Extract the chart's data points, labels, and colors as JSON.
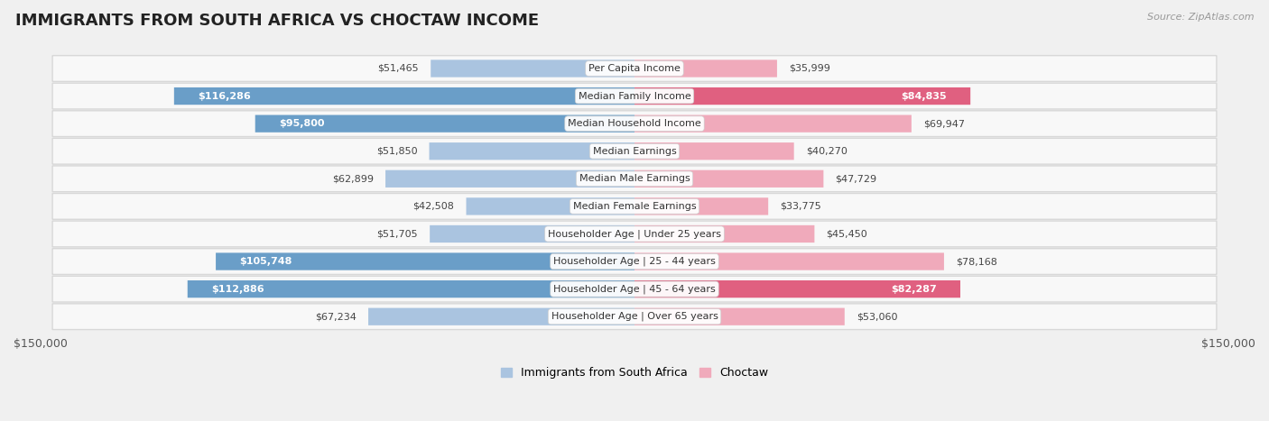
{
  "title": "IMMIGRANTS FROM SOUTH AFRICA VS CHOCTAW INCOME",
  "source": "Source: ZipAtlas.com",
  "categories": [
    "Per Capita Income",
    "Median Family Income",
    "Median Household Income",
    "Median Earnings",
    "Median Male Earnings",
    "Median Female Earnings",
    "Householder Age | Under 25 years",
    "Householder Age | 25 - 44 years",
    "Householder Age | 45 - 64 years",
    "Householder Age | Over 65 years"
  ],
  "left_values": [
    51465,
    116286,
    95800,
    51850,
    62899,
    42508,
    51705,
    105748,
    112886,
    67234
  ],
  "right_values": [
    35999,
    84835,
    69947,
    40270,
    47729,
    33775,
    45450,
    78168,
    82287,
    53060
  ],
  "left_labels": [
    "$51,465",
    "$116,286",
    "$95,800",
    "$51,850",
    "$62,899",
    "$42,508",
    "$51,705",
    "$105,748",
    "$112,886",
    "$67,234"
  ],
  "right_labels": [
    "$35,999",
    "$84,835",
    "$69,947",
    "$40,270",
    "$47,729",
    "$33,775",
    "$45,450",
    "$78,168",
    "$82,287",
    "$53,060"
  ],
  "left_color_light": "#aac4e0",
  "left_color_dark": "#6a9ec8",
  "right_color_light": "#f0aabb",
  "right_color_dark": "#e06080",
  "left_legend": "Immigrants from South Africa",
  "right_legend": "Choctaw",
  "max_val": 150000,
  "xlabel_left": "$150,000",
  "xlabel_right": "$150,000",
  "bg_color": "#f0f0f0",
  "row_bg": "#f8f8f8",
  "row_border": "#d8d8d8",
  "inside_label_threshold": 80000,
  "title_fontsize": 13,
  "source_fontsize": 8,
  "label_fontsize": 8,
  "cat_fontsize": 8
}
